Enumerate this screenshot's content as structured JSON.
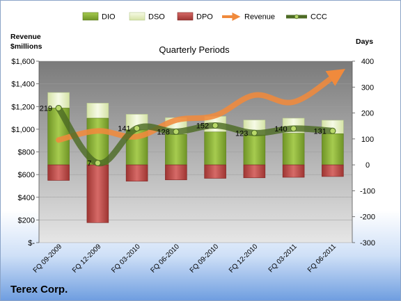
{
  "chart_data": {
    "type": "bar",
    "title": "Quarterly Periods",
    "company": "Terex Corp.",
    "left_axis_label": [
      "Revenue",
      "$millions"
    ],
    "right_axis_label": "Days",
    "categories": [
      "FQ 09-2009",
      "FQ 12-2009",
      "FQ 03-2010",
      "FQ 06-2010",
      "FQ 09-2010",
      "FQ 12-2010",
      "FQ 03-2011",
      "FQ 06-2011"
    ],
    "left_ylim": [
      0,
      1600
    ],
    "left_ticks": [
      "$-",
      "$200",
      "$400",
      "$600",
      "$800",
      "$1,000",
      "$1,200",
      "$1,400",
      "$1,600"
    ],
    "right_ylim": [
      -300,
      400
    ],
    "right_ticks": [
      "-300",
      "-200",
      "-100",
      "0",
      "100",
      "200",
      "300",
      "400"
    ],
    "grid": "horizontal",
    "legend_position": "top",
    "series": [
      {
        "name": "DIO",
        "axis": "days",
        "values": [
          219,
          180,
          135,
          118,
          127,
          115,
          122,
          120
        ]
      },
      {
        "name": "DSO",
        "axis": "days",
        "values": [
          60,
          58,
          60,
          64,
          60,
          58,
          58,
          52
        ]
      },
      {
        "name": "DPO",
        "axis": "days",
        "values": [
          -60,
          -223,
          -63,
          -58,
          -52,
          -50,
          -48,
          -45
        ]
      },
      {
        "name": "Revenue",
        "axis": "revenue",
        "values": [
          905,
          985,
          935,
          1080,
          1120,
          1300,
          1240,
          1460
        ]
      },
      {
        "name": "CCC",
        "axis": "days",
        "values": [
          219,
          7,
          141,
          128,
          152,
          123,
          140,
          131
        ]
      }
    ],
    "ccc_labels": [
      "219",
      "7",
      "141",
      "128",
      "152",
      "123",
      "140",
      "131"
    ],
    "colors": {
      "DIO": "#8db33a",
      "DIO_dark": "#5e7e1f",
      "DSO": "#e7f0c3",
      "DPO": "#c0504d",
      "DPO_dark": "#7e2624",
      "Revenue": "#f08a3c",
      "CCC": "#4d6b24",
      "plot_top": "#7a7a7a",
      "plot_bottom": "#e8e8e8"
    }
  }
}
